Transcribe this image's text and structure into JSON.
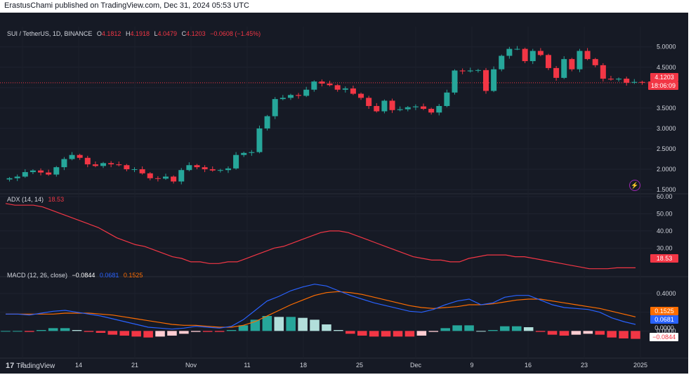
{
  "header": {
    "publish_line": "ErastusChami published on TradingView.com, Dec 31, 2024 05:53 UTC"
  },
  "footer": {
    "brand": "TradingView",
    "logo_glyph": "17"
  },
  "colors": {
    "up": "#26a69a",
    "down": "#f23645",
    "adx": "#f23645",
    "macd": "#2962ff",
    "signal": "#ff6d00",
    "hist_up_strong": "#26a69a",
    "hist_up_weak": "#b2dfdb",
    "hist_down_strong": "#f23645",
    "hist_down_weak": "#ffcdd2",
    "background": "#161a25",
    "text": "#d1d4dc"
  },
  "price_legend": {
    "symbol": "SUI / TetherUS, 1D, BINANCE",
    "o_label": "O",
    "o_value": "4.1812",
    "h_label": "H",
    "h_value": "4.1918",
    "l_label": "L",
    "l_value": "4.0479",
    "c_label": "C",
    "c_value": "4.1203",
    "change": "−0.0608 (−1.45%)"
  },
  "price_tags": {
    "last": "4.1203",
    "countdown": "18:06:09"
  },
  "adx_legend": {
    "name": "ADX (14, 14)",
    "value": "18.53"
  },
  "adx_tag": "18.53",
  "macd_legend": {
    "name": "MACD (12, 26, close)",
    "hist": "−0.0844",
    "macd": "0.0681",
    "signal": "0.1525"
  },
  "macd_tags": {
    "signal": "0.1525",
    "macd": "0.0681",
    "zero": "0.0000",
    "hist": "−0.0844"
  },
  "price_axis_ticks": [
    "5.0000",
    "4.5000",
    "4.0000",
    "3.5000",
    "3.0000",
    "2.5000",
    "2.0000",
    "1.5000"
  ],
  "adx_axis_ticks": [
    "60.00",
    "50.00",
    "40.00",
    "30.00"
  ],
  "macd_axis_ticks": [
    "0.4000",
    "0.2000",
    "0.0000"
  ],
  "x_axis_ticks": [
    "7",
    "14",
    "21",
    "Nov",
    "11",
    "18",
    "25",
    "Dec",
    "9",
    "16",
    "23",
    "2025"
  ],
  "chart_data": [
    {
      "type": "candlestick",
      "title": "SUI / TetherUS, 1D, BINANCE",
      "x_start": "2024-10-06",
      "x_end": "2024-12-31",
      "ylim": [
        1.45,
        5.15
      ],
      "x_ticks": [
        "7",
        "14",
        "21",
        "Nov",
        "11",
        "18",
        "25",
        "Dec",
        "9",
        "16",
        "23",
        "2025"
      ],
      "closes": [
        1.78,
        1.82,
        1.93,
        1.97,
        1.92,
        1.87,
        2.05,
        2.25,
        2.35,
        2.28,
        2.12,
        2.08,
        2.15,
        2.12,
        2.1,
        2.0,
        2.0,
        1.9,
        1.78,
        1.77,
        1.82,
        1.7,
        1.98,
        2.1,
        2.05,
        2.0,
        1.97,
        1.98,
        2.02,
        2.35,
        2.4,
        2.42,
        3.0,
        3.3,
        3.72,
        3.75,
        3.82,
        3.8,
        3.95,
        4.15,
        4.1,
        4.06,
        3.95,
        3.98,
        3.85,
        3.75,
        3.55,
        3.42,
        3.68,
        3.45,
        3.47,
        3.52,
        3.54,
        3.48,
        3.39,
        3.55,
        3.88,
        4.42,
        4.4,
        4.42,
        4.43,
        3.92,
        4.45,
        4.78,
        4.95,
        4.95,
        4.65,
        4.9,
        4.8,
        4.48,
        4.24,
        4.7,
        4.45,
        4.9,
        4.7,
        4.55,
        4.22,
        4.2,
        4.22,
        4.12,
        4.14,
        4.12
      ]
    },
    {
      "type": "line",
      "title": "ADX (14, 14)",
      "series": [
        {
          "name": "ADX",
          "values": [
            56,
            55,
            55,
            55,
            54,
            52,
            50,
            48,
            46,
            44,
            42,
            39,
            36,
            34,
            32,
            31,
            29,
            27,
            25,
            24,
            22,
            22,
            21,
            21,
            22,
            22,
            24,
            26,
            28,
            30,
            31,
            33,
            35,
            37,
            39,
            40,
            40,
            39,
            37,
            35,
            33,
            31,
            29,
            27,
            25,
            24,
            23,
            23,
            22,
            22,
            24,
            25,
            26,
            26,
            26,
            25,
            25,
            24,
            23,
            22,
            21,
            20,
            19,
            18,
            18,
            18,
            18.5,
            18.5,
            18.53
          ]
        }
      ],
      "ylim": [
        15,
        60
      ]
    },
    {
      "type": "line",
      "title": "MACD (12, 26, close)",
      "series": [
        {
          "name": "MACD",
          "values": [
            0.18,
            0.18,
            0.17,
            0.19,
            0.21,
            0.22,
            0.2,
            0.18,
            0.16,
            0.13,
            0.1,
            0.07,
            0.04,
            0.03,
            0.02,
            0.03,
            0.05,
            0.04,
            0.03,
            0.05,
            0.12,
            0.22,
            0.32,
            0.37,
            0.43,
            0.47,
            0.5,
            0.48,
            0.43,
            0.38,
            0.34,
            0.3,
            0.27,
            0.24,
            0.21,
            0.2,
            0.23,
            0.28,
            0.32,
            0.34,
            0.28,
            0.3,
            0.36,
            0.38,
            0.38,
            0.33,
            0.28,
            0.25,
            0.24,
            0.23,
            0.2,
            0.14,
            0.1,
            0.07
          ]
        },
        {
          "name": "Signal",
          "values": [
            0.18,
            0.18,
            0.18,
            0.18,
            0.18,
            0.19,
            0.19,
            0.19,
            0.18,
            0.17,
            0.15,
            0.13,
            0.11,
            0.09,
            0.07,
            0.06,
            0.06,
            0.05,
            0.04,
            0.04,
            0.06,
            0.1,
            0.16,
            0.22,
            0.28,
            0.33,
            0.38,
            0.41,
            0.42,
            0.41,
            0.39,
            0.36,
            0.33,
            0.3,
            0.27,
            0.25,
            0.24,
            0.25,
            0.26,
            0.28,
            0.28,
            0.29,
            0.31,
            0.33,
            0.34,
            0.34,
            0.32,
            0.3,
            0.28,
            0.26,
            0.24,
            0.21,
            0.18,
            0.15
          ]
        },
        {
          "name": "Histogram",
          "values": [
            0.0,
            0.0,
            -0.01,
            0.01,
            0.03,
            0.03,
            0.01,
            -0.01,
            -0.02,
            -0.04,
            -0.05,
            -0.06,
            -0.07,
            -0.06,
            -0.05,
            -0.03,
            -0.01,
            -0.01,
            -0.01,
            0.01,
            0.06,
            0.12,
            0.16,
            0.15,
            0.15,
            0.14,
            0.12,
            0.07,
            0.01,
            -0.03,
            -0.05,
            -0.06,
            -0.06,
            -0.06,
            -0.06,
            -0.05,
            -0.01,
            0.03,
            0.06,
            0.06,
            0.0,
            0.01,
            0.05,
            0.05,
            0.04,
            -0.01,
            -0.04,
            -0.05,
            -0.04,
            -0.03,
            -0.04,
            -0.07,
            -0.08,
            -0.0844
          ]
        }
      ],
      "ylim": [
        -0.2,
        0.55
      ]
    }
  ]
}
